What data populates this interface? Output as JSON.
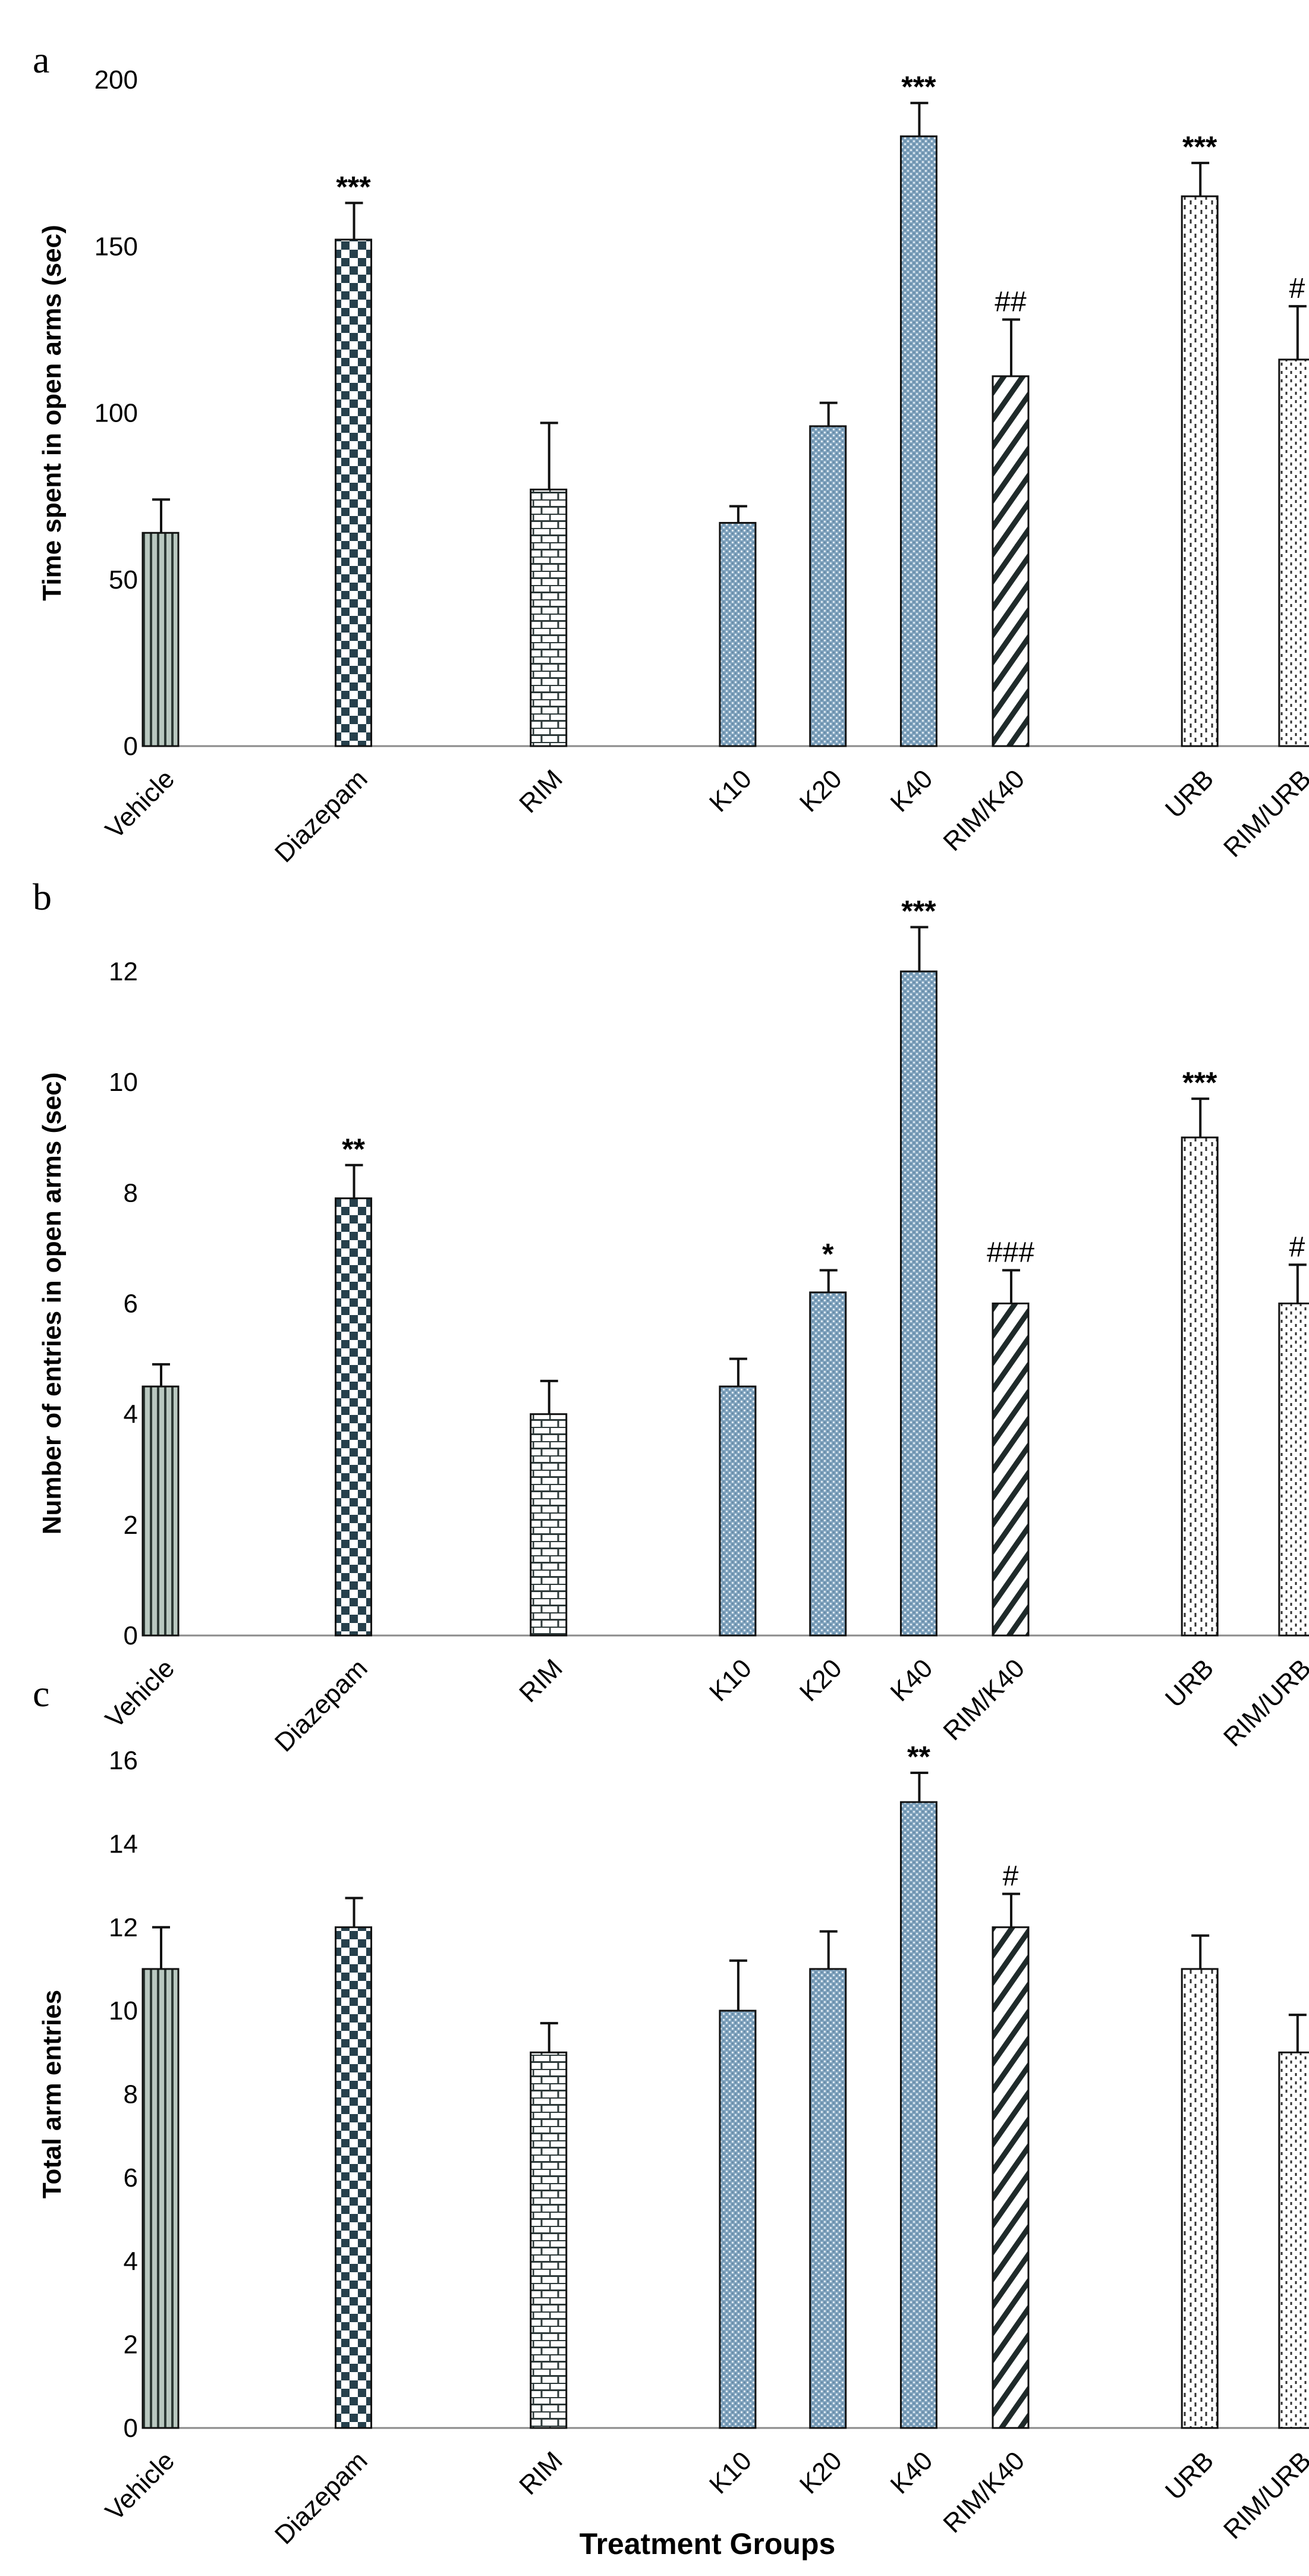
{
  "chart_data": [
    {
      "type": "bar",
      "panel": "a",
      "title": "",
      "xlabel": "",
      "ylabel": "Time spent in open arms (sec)",
      "ylim": [
        0,
        200
      ],
      "yticks": [
        0,
        50,
        100,
        150,
        200
      ],
      "grid": false,
      "categories": [
        "Vehicle",
        "Diazepam",
        "RIM",
        "K10",
        "K20",
        "K40",
        "RIM/K40",
        "URB",
        "RIM/URB"
      ],
      "values": [
        64,
        152,
        77,
        67,
        96,
        183,
        111,
        165,
        116
      ],
      "errors": [
        10,
        11,
        20,
        5,
        7,
        10,
        17,
        10,
        16
      ],
      "annotations": [
        "",
        "***",
        "",
        "",
        "",
        "***",
        "##",
        "***",
        "#"
      ]
    },
    {
      "type": "bar",
      "panel": "b",
      "title": "",
      "xlabel": "",
      "ylabel": "Number of entries in open arms (sec)",
      "ylim": [
        0,
        12
      ],
      "yticks": [
        0,
        2,
        4,
        6,
        8,
        10,
        12
      ],
      "grid": false,
      "categories": [
        "Vehicle",
        "Diazepam",
        "RIM",
        "K10",
        "K20",
        "K40",
        "RIM/K40",
        "URB",
        "RIM/URB"
      ],
      "values": [
        4.5,
        7.9,
        4.0,
        4.5,
        6.2,
        12.0,
        6.0,
        9.0,
        6.0
      ],
      "errors": [
        0.4,
        0.6,
        0.6,
        0.5,
        0.4,
        0.8,
        0.6,
        0.7,
        0.7
      ],
      "annotations": [
        "",
        "**",
        "",
        "",
        "*",
        "***",
        "###",
        "***",
        "#"
      ]
    },
    {
      "type": "bar",
      "panel": "c",
      "title": "",
      "xlabel": "Treatment Groups",
      "ylabel": "Total arm entries",
      "ylim": [
        0,
        16
      ],
      "yticks": [
        0,
        2,
        4,
        6,
        8,
        10,
        12,
        14,
        16
      ],
      "grid": false,
      "categories": [
        "Vehicle",
        "Diazepam",
        "RIM",
        "K10",
        "K20",
        "K40",
        "RIM/K40",
        "URB",
        "RIM/URB"
      ],
      "values": [
        11,
        12,
        9,
        10,
        11,
        15,
        12,
        11,
        9
      ],
      "errors": [
        1.0,
        0.7,
        0.7,
        1.2,
        0.9,
        0.7,
        0.8,
        0.8,
        0.9
      ],
      "annotations": [
        "",
        "",
        "",
        "",
        "",
        "**",
        "#",
        "",
        ""
      ]
    }
  ]
}
